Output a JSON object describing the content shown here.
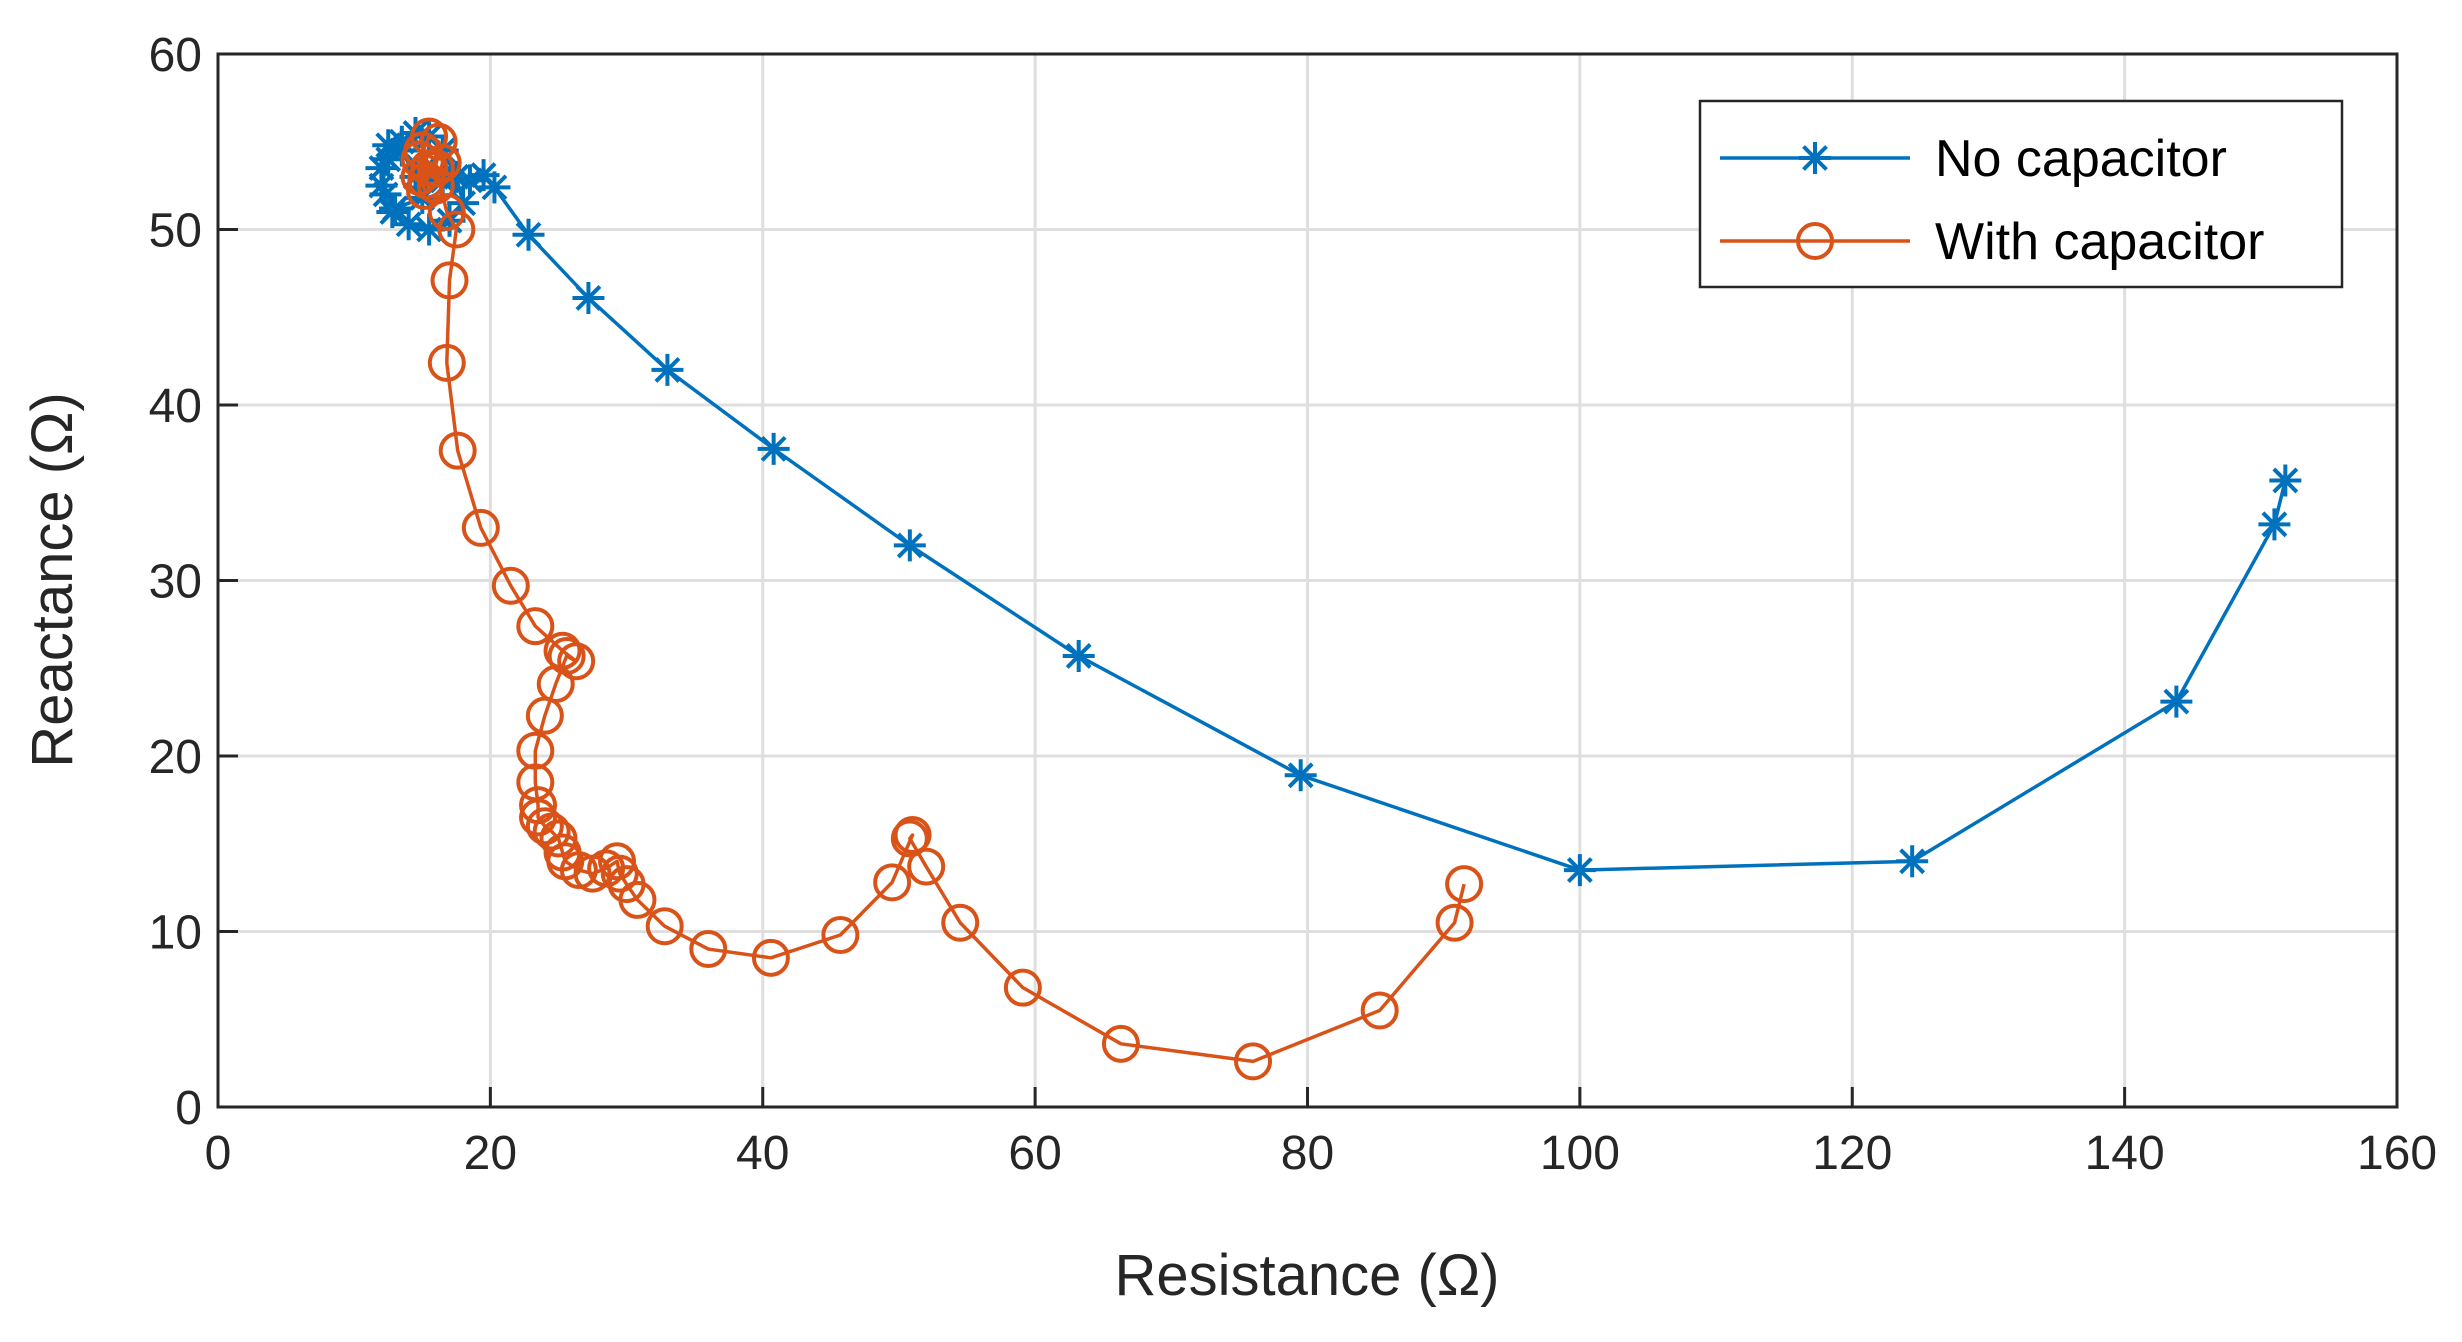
{
  "chart_data": {
    "type": "line",
    "xlabel": "Resistance (Ω)",
    "ylabel": "Reactance (Ω)",
    "xlim": [
      0,
      160
    ],
    "ylim": [
      0,
      60
    ],
    "xticks": [
      "0",
      "20",
      "40",
      "60",
      "80",
      "100",
      "120",
      "140",
      "160"
    ],
    "yticks": [
      "0",
      "10",
      "20",
      "30",
      "40",
      "50",
      "60"
    ],
    "grid": true,
    "legend_position": "top-right",
    "series": [
      {
        "name": "No capacitor",
        "color": "#0072BD",
        "marker": "asterisk",
        "x": [
          14.5,
          13.5,
          12.5,
          12,
          12.3,
          12.8,
          14,
          15.5,
          17,
          18,
          17.5,
          16.5,
          15.5,
          14.5,
          13.5,
          12.5,
          12,
          13,
          15,
          16.5,
          18.5,
          19.5,
          20.3,
          22.8,
          27.2,
          33,
          40.8,
          50.8,
          63.2,
          79.5,
          100,
          124.4,
          143.8,
          151,
          151.8
        ],
        "y": [
          53,
          54.5,
          54.8,
          53.5,
          52,
          51,
          50.3,
          50,
          50.5,
          51.5,
          53,
          54.5,
          55.3,
          55.5,
          55,
          54,
          52.5,
          51.2,
          51.8,
          52.8,
          52.8,
          53.1,
          52.4,
          49.7,
          46.1,
          42,
          37.5,
          32,
          25.7,
          18.9,
          13.5,
          14,
          23.1,
          33.2,
          35.7
        ]
      },
      {
        "name": "With capacitor",
        "color": "#D95319",
        "marker": "circle",
        "x": [
          15.5,
          15,
          14.8,
          15.2,
          16,
          16.5,
          16.2,
          15.5,
          14.8,
          15.3,
          16,
          16.8,
          17.5,
          17,
          16.8,
          17.6,
          19.3,
          21.5,
          23.3,
          25.3,
          26.3,
          25.6,
          24.8,
          24,
          23.3,
          23.3,
          23.5,
          23.5,
          24,
          24.5,
          25,
          25.3,
          25.5,
          26.5,
          27.5,
          28.5,
          29.3,
          29.5,
          30,
          30.8,
          32.8,
          36,
          40.6,
          45.7,
          49.5,
          51,
          50.8,
          52,
          54.5,
          59.1,
          66.3,
          76,
          85.3,
          90.8,
          91.5
        ],
        "y": [
          53.5,
          54.5,
          53,
          52.2,
          52.5,
          53.8,
          55,
          55.3,
          54,
          52.8,
          53.5,
          51,
          50,
          47.1,
          42.4,
          37.4,
          33,
          29.7,
          27.4,
          26,
          25.4,
          25.7,
          24.1,
          22.3,
          20.3,
          18.5,
          17.2,
          16.5,
          16,
          15.7,
          15.3,
          14.5,
          14,
          13.5,
          13.3,
          13.6,
          14,
          13.3,
          12.7,
          11.8,
          10.3,
          9,
          8.5,
          9.8,
          12.8,
          15.5,
          15.3,
          13.7,
          10.5,
          6.8,
          3.6,
          2.6,
          5.5,
          10.5,
          12.7
        ]
      }
    ]
  }
}
